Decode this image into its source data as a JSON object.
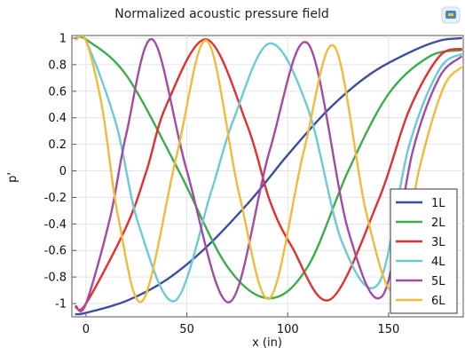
{
  "toolbar": {
    "icon": "comsol-logo-icon"
  },
  "chart_data": {
    "type": "line",
    "title": "Normalized acoustic pressure field",
    "xlabel": "x (in)",
    "ylabel": "p'",
    "xlim": [
      -7,
      187
    ],
    "ylim": [
      -1.1,
      1.02
    ],
    "xticks": [
      0,
      50,
      100,
      150
    ],
    "yticks": [
      1,
      0.8,
      0.6,
      0.4,
      0.2,
      0,
      -0.2,
      -0.4,
      -0.6,
      -0.8,
      -1
    ],
    "ytick_labels": [
      "1",
      "0.8",
      "0.6",
      "0.4",
      "0.2",
      "0",
      "-0.2",
      "-0.4",
      "-0.6",
      "-0.8",
      "-1"
    ],
    "legend_position": "lower-right",
    "grid": true,
    "series": [
      {
        "name": "1L",
        "color": "#3a4ea0",
        "x": [
          -5,
          0,
          20,
          40,
          60,
          80,
          92,
          100,
          120,
          140,
          160,
          175,
          186
        ],
        "y": [
          -1.08,
          -1.07,
          -0.98,
          -0.82,
          -0.57,
          -0.25,
          -0.03,
          0.12,
          0.46,
          0.72,
          0.89,
          0.98,
          1.0
        ]
      },
      {
        "name": "2L",
        "color": "#3cad4c",
        "x": [
          -5,
          0,
          20,
          46,
          70,
          91,
          110,
          130,
          150,
          170,
          186
        ],
        "y": [
          1.0,
          0.99,
          0.72,
          0.0,
          -0.72,
          -0.96,
          -0.72,
          0.0,
          0.58,
          0.86,
          0.91
        ]
      },
      {
        "name": "3L",
        "color": "#e03030",
        "x": [
          -5,
          0,
          20,
          30,
          40,
          60,
          80,
          91,
          102,
          121,
          145,
          160,
          175,
          186
        ],
        "y": [
          -1.02,
          -1.0,
          -0.42,
          0.0,
          0.5,
          0.99,
          0.34,
          -0.22,
          -0.57,
          -0.97,
          -0.22,
          0.45,
          0.86,
          0.92
        ]
      },
      {
        "name": "4L",
        "color": "#6ccad6",
        "x": [
          -5,
          0,
          15,
          26,
          44,
          62,
          73,
          91,
          110,
          127,
          145,
          160,
          175,
          186
        ],
        "y": [
          1.0,
          0.98,
          0.35,
          -0.4,
          -0.98,
          -0.16,
          0.38,
          0.96,
          0.47,
          -0.54,
          -0.85,
          0.18,
          0.76,
          0.88
        ]
      },
      {
        "name": "5L",
        "color": "#a24aa6",
        "x": [
          -5,
          0,
          12,
          20,
          33,
          50,
          71,
          91,
          110,
          130,
          147,
          162,
          175,
          186
        ],
        "y": [
          -1.03,
          -1.0,
          -0.35,
          0.28,
          0.99,
          0.0,
          -0.99,
          0.15,
          0.96,
          -0.45,
          -0.94,
          0.15,
          0.7,
          0.86
        ]
      },
      {
        "name": "6L",
        "color": "#f0bb3a",
        "x": [
          -5,
          0,
          8,
          16,
          28,
          45,
          60,
          76,
          91,
          108,
          123,
          139,
          153,
          165,
          177,
          186
        ],
        "y": [
          0.99,
          0.98,
          0.48,
          -0.35,
          -0.98,
          0.12,
          0.98,
          -0.18,
          -0.96,
          0.15,
          0.94,
          -0.32,
          -0.9,
          0.0,
          0.62,
          0.78
        ]
      }
    ]
  }
}
